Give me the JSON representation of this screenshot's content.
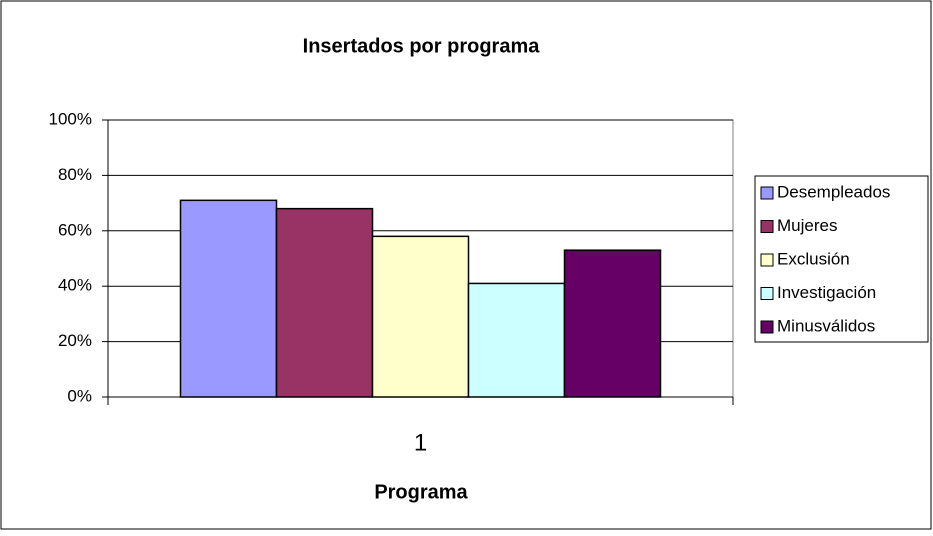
{
  "chart_data": {
    "type": "bar",
    "title": "Insertados por programa",
    "x_label": "Programa",
    "categories": [
      "1"
    ],
    "series": [
      {
        "name": "Desempleados",
        "color": "#9999ff",
        "values": [
          71
        ]
      },
      {
        "name": "Mujeres",
        "color": "#993366",
        "values": [
          68
        ]
      },
      {
        "name": "Exclusión",
        "color": "#ffffcc",
        "values": [
          58
        ]
      },
      {
        "name": "Investigación",
        "color": "#ccffff",
        "values": [
          41
        ]
      },
      {
        "name": "Minusválidos",
        "color": "#660066",
        "values": [
          53
        ]
      }
    ],
    "ylim": [
      0,
      100
    ],
    "yticks": [
      {
        "value": 0,
        "label": "0%"
      },
      {
        "value": 20,
        "label": "20%"
      },
      {
        "value": 40,
        "label": "40%"
      },
      {
        "value": 60,
        "label": "60%"
      },
      {
        "value": 80,
        "label": "80%"
      },
      {
        "value": 100,
        "label": "100%"
      }
    ],
    "grid": true,
    "legend": "right"
  }
}
